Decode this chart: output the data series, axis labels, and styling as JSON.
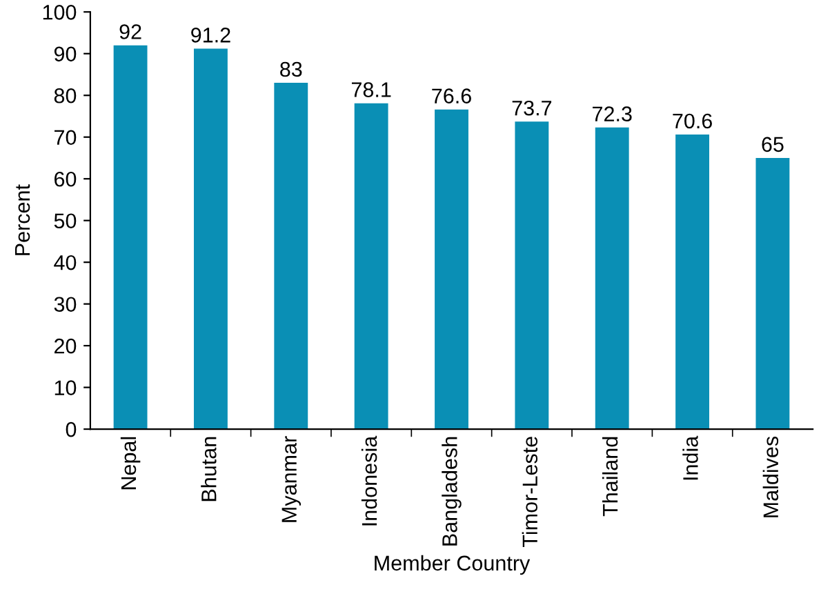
{
  "chart_data": {
    "type": "bar",
    "xlabel": "Member Country",
    "ylabel": "Percent",
    "categories": [
      "Nepal",
      "Bhutan",
      "Myanmar",
      "Indonesia",
      "Bangladesh",
      "Timor-Leste",
      "Thailand",
      "India",
      "Maldives"
    ],
    "values": [
      92,
      91.2,
      83,
      78.1,
      76.6,
      73.7,
      72.3,
      70.6,
      65
    ],
    "color": "#0a8fb5",
    "ylim": [
      0,
      100
    ],
    "yticks": [
      0,
      10,
      20,
      30,
      40,
      50,
      60,
      70,
      80,
      90,
      100
    ],
    "data_labels": true,
    "grid": false,
    "legend": false
  }
}
